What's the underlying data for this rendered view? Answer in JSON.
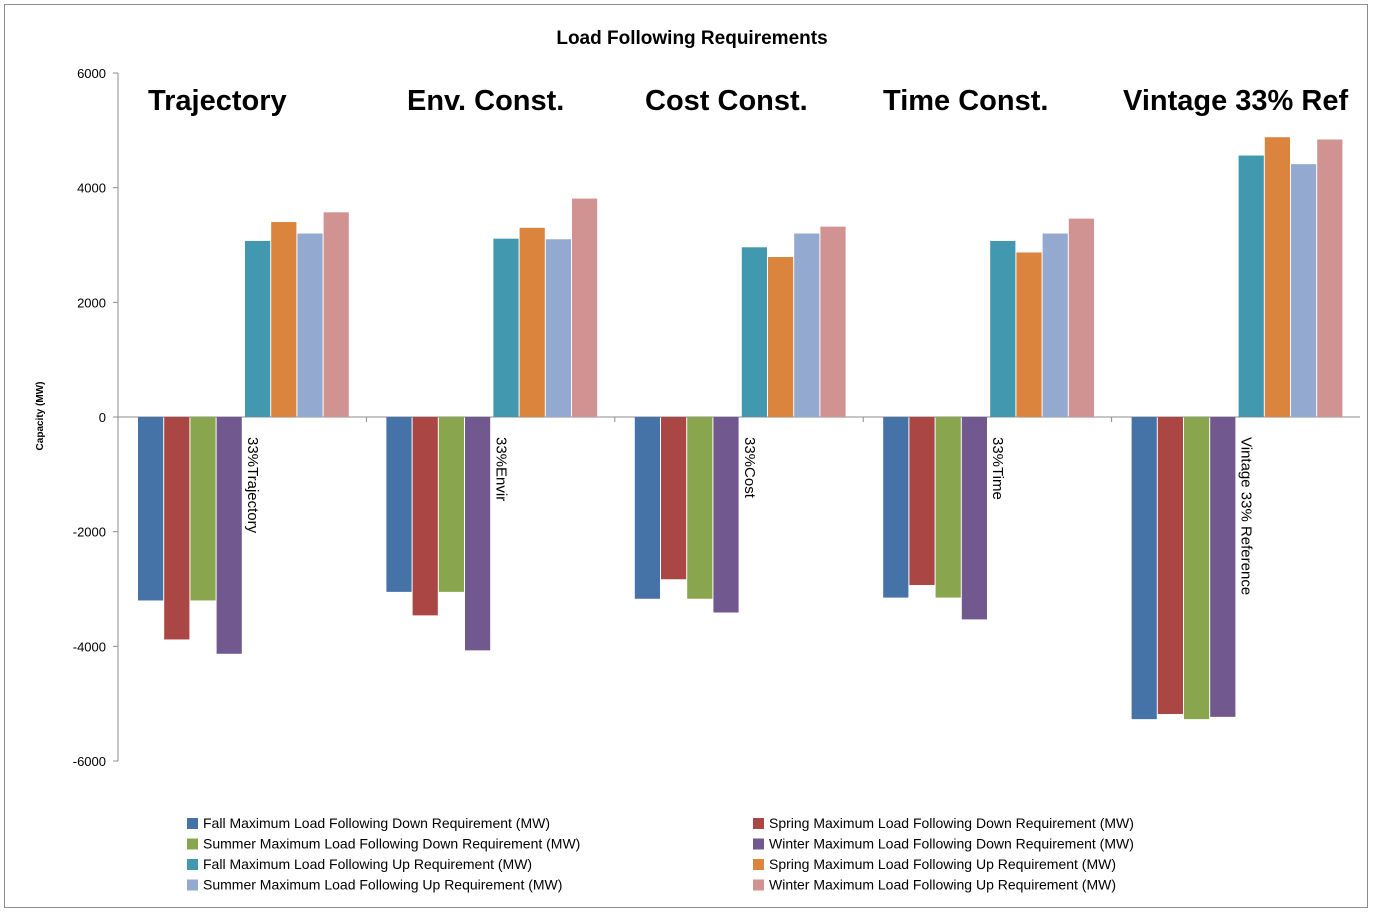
{
  "chart_data": {
    "type": "bar",
    "title": "Load Following Requirements",
    "ylabel": "Capacity (MW)",
    "xlabel": "",
    "ylim": [
      -6000,
      6000
    ],
    "yticks": [
      6000,
      4000,
      2000,
      0,
      -2000,
      -4000,
      -6000
    ],
    "grid": false,
    "legend_position": "bottom",
    "categories": [
      "33%Trajectory",
      "33%Envir",
      "33%Cost",
      "33%Time",
      "Vintage 33% Reference"
    ],
    "annotations": [
      "Trajectory",
      "Env. Const.",
      "Cost Const.",
      "Time Const.",
      "Vintage 33% Ref"
    ],
    "series": [
      {
        "name": "Fall Maximum Load Following Down Requirement (MW)",
        "color": "#4572a7",
        "values": [
          -3200,
          -3050,
          -3170,
          -3150,
          -5270
        ]
      },
      {
        "name": "Spring Maximum Load Following Down Requirement (MW)",
        "color": "#aa4643",
        "values": [
          -3880,
          -3460,
          -2830,
          -2930,
          -5180
        ]
      },
      {
        "name": "Summer Maximum Load Following Down Requirement (MW)",
        "color": "#89a54e",
        "values": [
          -3200,
          -3050,
          -3170,
          -3150,
          -5270
        ]
      },
      {
        "name": "Winter Maximum Load Following Down Requirement (MW)",
        "color": "#71588f",
        "values": [
          -4130,
          -4070,
          -3410,
          -3530,
          -5230
        ]
      },
      {
        "name": "Fall Maximum Load Following Up Requirement (MW)",
        "color": "#4198af",
        "values": [
          3070,
          3110,
          2960,
          3070,
          4560
        ]
      },
      {
        "name": "Spring Maximum Load Following Up Requirement (MW)",
        "color": "#db843d",
        "values": [
          3400,
          3300,
          2790,
          2870,
          4880
        ]
      },
      {
        "name": "Summer Maximum Load Following Up Requirement (MW)",
        "color": "#93a9cf",
        "values": [
          3200,
          3100,
          3200,
          3200,
          4410
        ]
      },
      {
        "name": "Winter Maximum Load Following Up Requirement (MW)",
        "color": "#d19392",
        "values": [
          3570,
          3810,
          3320,
          3460,
          4840
        ]
      }
    ]
  }
}
